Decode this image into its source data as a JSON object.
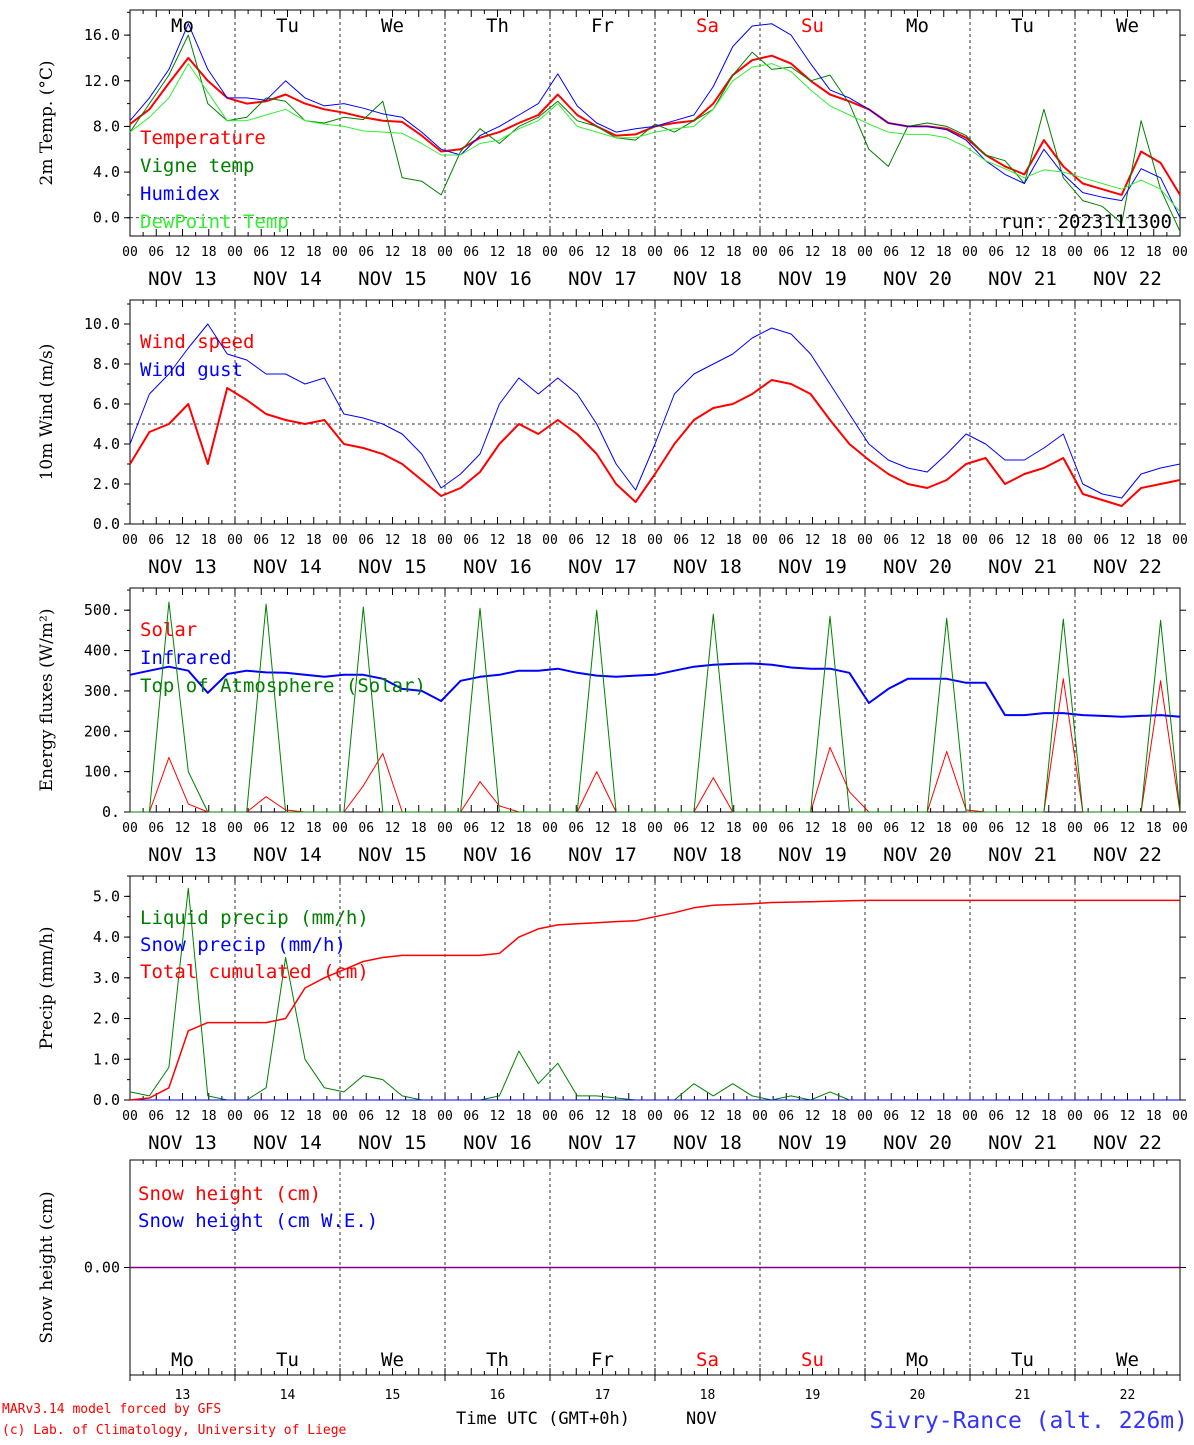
{
  "days": [
    {
      "abbr": "Mo",
      "label": "NOV 13",
      "num": "13",
      "weekend": false
    },
    {
      "abbr": "Tu",
      "label": "NOV 14",
      "num": "14",
      "weekend": false
    },
    {
      "abbr": "We",
      "label": "NOV 15",
      "num": "15",
      "weekend": false
    },
    {
      "abbr": "Th",
      "label": "NOV 16",
      "num": "16",
      "weekend": false
    },
    {
      "abbr": "Fr",
      "label": "NOV 17",
      "num": "17",
      "weekend": false
    },
    {
      "abbr": "Sa",
      "label": "NOV 18",
      "num": "18",
      "weekend": true
    },
    {
      "abbr": "Su",
      "label": "NOV 19",
      "num": "19",
      "weekend": true
    },
    {
      "abbr": "Mo",
      "label": "NOV 20",
      "num": "20",
      "weekend": false
    },
    {
      "abbr": "Tu",
      "label": "NOV 21",
      "num": "21",
      "weekend": false
    },
    {
      "abbr": "We",
      "label": "NOV 22",
      "num": "22",
      "weekend": false
    }
  ],
  "hour_ticks": [
    "00",
    "06",
    "12",
    "18"
  ],
  "run_label": "run: 2023111300",
  "footer": {
    "credit1": "MARv3.14 model forced by GFS",
    "credit2": "(c) Lab. of Climatology, University of Liege",
    "xaxis": "Time UTC (GMT+0h)",
    "month": "NOV",
    "station": "Sivry-Rance (alt. 226m)"
  },
  "colors": {
    "red": "#ff0000",
    "green": "#008000",
    "blue": "#0000ff",
    "light_green": "#33ee33",
    "purple": "#800080",
    "station": "#3333ff"
  },
  "chart_data": [
    {
      "id": "temp",
      "type": "line",
      "ylabel": "2m Temp. (°C)",
      "ylim": [
        -1.6,
        18.2
      ],
      "yticks": [
        {
          "v": 0,
          "l": "0.0"
        },
        {
          "v": 4,
          "l": "4.0"
        },
        {
          "v": 8,
          "l": "8.0"
        },
        {
          "v": 12,
          "l": "12.0"
        },
        {
          "v": 16,
          "l": "16.0"
        }
      ],
      "dashed_y": 0,
      "x_hours_step": 6,
      "series": [
        {
          "name": "Temperature",
          "color": "#ff0000",
          "width": 2,
          "values": [
            8.2,
            9.5,
            11.8,
            14.0,
            12.0,
            10.5,
            10.0,
            10.2,
            10.8,
            10.0,
            9.5,
            9.2,
            8.8,
            8.5,
            8.4,
            7.2,
            5.8,
            6.0,
            7.0,
            7.5,
            8.3,
            9.0,
            10.8,
            9.0,
            8.0,
            7.2,
            7.3,
            8.0,
            8.3,
            8.5,
            10.0,
            12.5,
            13.8,
            14.2,
            13.5,
            12.0,
            10.8,
            10.2,
            9.5,
            8.3,
            8.0,
            8.0,
            7.8,
            7.0,
            5.5,
            4.5,
            3.8,
            6.8,
            4.5,
            3.0,
            2.5,
            2.0,
            5.8,
            4.8,
            2.0
          ]
        },
        {
          "name": "Vigne temp",
          "color": "#008000",
          "width": 1,
          "values": [
            7.5,
            10.0,
            12.5,
            16.0,
            10.0,
            8.5,
            8.8,
            10.5,
            10.2,
            8.5,
            8.3,
            8.8,
            8.6,
            10.2,
            3.5,
            3.2,
            2.0,
            5.8,
            7.8,
            6.5,
            8.0,
            8.8,
            10.2,
            8.5,
            8.0,
            7.0,
            6.8,
            8.2,
            7.5,
            8.5,
            9.5,
            12.5,
            14.5,
            13.0,
            13.2,
            12.0,
            12.5,
            10.0,
            6.0,
            4.5,
            8.0,
            8.3,
            8.0,
            7.2,
            5.5,
            5.0,
            3.0,
            9.5,
            3.5,
            1.5,
            1.0,
            -0.5,
            8.5,
            2.5,
            -1.2
          ]
        },
        {
          "name": "Humidex",
          "color": "#0000ff",
          "width": 1,
          "values": [
            8.5,
            10.5,
            13.0,
            17.0,
            13.0,
            10.5,
            10.5,
            10.3,
            12.0,
            10.5,
            9.8,
            10.0,
            9.6,
            9.1,
            8.8,
            7.5,
            6.0,
            5.5,
            7.2,
            8.0,
            9.0,
            10.0,
            12.6,
            9.8,
            8.3,
            7.5,
            7.8,
            8.0,
            8.5,
            9.0,
            11.5,
            15.0,
            16.8,
            17.0,
            16.0,
            13.5,
            11.2,
            10.5,
            9.5,
            8.3,
            8.0,
            8.0,
            7.7,
            6.8,
            5.0,
            3.8,
            3.0,
            6.0,
            3.8,
            2.2,
            1.8,
            1.5,
            4.3,
            3.5,
            0.0
          ]
        },
        {
          "name": "DewPoint Temp",
          "color": "#33ee33",
          "width": 1,
          "values": [
            7.5,
            8.8,
            10.5,
            13.5,
            11.0,
            8.5,
            8.5,
            9.0,
            9.5,
            8.5,
            8.2,
            8.0,
            7.6,
            7.5,
            7.4,
            6.5,
            5.5,
            5.5,
            6.5,
            6.8,
            7.8,
            8.5,
            10.0,
            8.0,
            7.5,
            7.0,
            7.0,
            7.5,
            7.8,
            8.0,
            9.5,
            12.0,
            13.2,
            13.5,
            12.8,
            11.2,
            9.8,
            9.0,
            8.2,
            7.5,
            7.3,
            7.3,
            7.0,
            6.2,
            5.0,
            4.3,
            3.5,
            4.2,
            4.0,
            3.5,
            3.0,
            2.5,
            3.3,
            2.5,
            0.5
          ]
        }
      ]
    },
    {
      "id": "wind",
      "type": "line",
      "ylabel": "10m Wind (m/s)",
      "ylim": [
        0,
        11.2
      ],
      "yticks": [
        {
          "v": 0,
          "l": "0.0"
        },
        {
          "v": 2,
          "l": "2.0"
        },
        {
          "v": 4,
          "l": "4.0"
        },
        {
          "v": 6,
          "l": "6.0"
        },
        {
          "v": 8,
          "l": "8.0"
        },
        {
          "v": 10,
          "l": "10.0"
        }
      ],
      "dashed_y": 5,
      "x_hours_step": 6,
      "series": [
        {
          "name": "Wind speed",
          "color": "#ff0000",
          "width": 2,
          "values": [
            3.0,
            4.6,
            5.0,
            6.0,
            3.0,
            6.8,
            6.2,
            5.5,
            5.2,
            5.0,
            5.2,
            4.0,
            3.8,
            3.5,
            3.0,
            2.2,
            1.4,
            1.8,
            2.6,
            4.0,
            5.0,
            4.5,
            5.2,
            4.5,
            3.5,
            2.0,
            1.1,
            2.5,
            4.0,
            5.2,
            5.8,
            6.0,
            6.5,
            7.2,
            7.0,
            6.5,
            5.2,
            4.0,
            3.2,
            2.5,
            2.0,
            1.8,
            2.2,
            3.0,
            3.3,
            2.0,
            2.5,
            2.8,
            3.3,
            1.5,
            1.2,
            0.9,
            1.8,
            2.0,
            2.2
          ]
        },
        {
          "name": "Wind gust",
          "color": "#0000ff",
          "width": 1,
          "values": [
            4.0,
            6.5,
            7.5,
            8.8,
            10.0,
            8.5,
            8.2,
            7.5,
            7.5,
            7.0,
            7.3,
            5.5,
            5.3,
            5.0,
            4.5,
            3.5,
            1.8,
            2.5,
            3.5,
            6.0,
            7.3,
            6.5,
            7.3,
            6.5,
            5.0,
            3.0,
            1.7,
            4.0,
            6.5,
            7.5,
            8.0,
            8.5,
            9.3,
            9.8,
            9.5,
            8.5,
            7.0,
            5.5,
            4.0,
            3.2,
            2.8,
            2.6,
            3.5,
            4.5,
            4.0,
            3.2,
            3.2,
            3.8,
            4.5,
            2.0,
            1.5,
            1.3,
            2.5,
            2.8,
            3.0
          ]
        }
      ]
    },
    {
      "id": "energy",
      "type": "line",
      "ylabel": "Energy fluxes (W/m²)",
      "ylim": [
        0,
        555
      ],
      "yticks": [
        {
          "v": 0,
          "l": "0."
        },
        {
          "v": 100,
          "l": "100."
        },
        {
          "v": 200,
          "l": "200."
        },
        {
          "v": 300,
          "l": "300."
        },
        {
          "v": 400,
          "l": "400."
        },
        {
          "v": 500,
          "l": "500."
        }
      ],
      "x_hours_step": 6,
      "series": [
        {
          "name": "Solar",
          "color": "#ff0000",
          "width": 1,
          "values": [
            0,
            0,
            135,
            20,
            0,
            0,
            0,
            38,
            5,
            0,
            0,
            0,
            65,
            145,
            0,
            0,
            0,
            0,
            75,
            15,
            0,
            0,
            0,
            0,
            100,
            0,
            0,
            0,
            0,
            0,
            85,
            0,
            0,
            0,
            0,
            0,
            160,
            50,
            0,
            0,
            0,
            0,
            150,
            5,
            0,
            0,
            0,
            0,
            330,
            0,
            0,
            0,
            0,
            325,
            0
          ]
        },
        {
          "name": "Infrared",
          "color": "#0000ff",
          "width": 2,
          "values": [
            340,
            350,
            360,
            350,
            295,
            342,
            350,
            346,
            345,
            340,
            335,
            340,
            340,
            330,
            305,
            300,
            275,
            325,
            335,
            340,
            350,
            350,
            355,
            345,
            338,
            335,
            338,
            340,
            350,
            360,
            365,
            367,
            368,
            365,
            358,
            355,
            355,
            345,
            270,
            305,
            330,
            330,
            330,
            320,
            320,
            240,
            240,
            245,
            245,
            240,
            238,
            236,
            238,
            240,
            236
          ]
        },
        {
          "name": "Top of Atmosphere (Solar)",
          "color": "#008000",
          "width": 1,
          "values": [
            0,
            0,
            520,
            100,
            0,
            0,
            0,
            515,
            0,
            0,
            0,
            0,
            508,
            0,
            0,
            0,
            0,
            0,
            505,
            0,
            0,
            0,
            0,
            0,
            500,
            0,
            0,
            0,
            0,
            0,
            490,
            0,
            0,
            0,
            0,
            0,
            485,
            0,
            0,
            0,
            0,
            0,
            480,
            0,
            0,
            0,
            0,
            0,
            478,
            0,
            0,
            0,
            0,
            475,
            0
          ]
        }
      ]
    },
    {
      "id": "precip",
      "type": "line",
      "ylabel": "Precip (mm/h)",
      "ylim": [
        0,
        5.5
      ],
      "yticks": [
        {
          "v": 0,
          "l": "0.0"
        },
        {
          "v": 1,
          "l": "1.0"
        },
        {
          "v": 2,
          "l": "2.0"
        },
        {
          "v": 3,
          "l": "3.0"
        },
        {
          "v": 4,
          "l": "4.0"
        },
        {
          "v": 5,
          "l": "5.0"
        }
      ],
      "x_hours_step": 6,
      "series": [
        {
          "name": "Liquid precip (mm/h)",
          "color": "#008000",
          "width": 1,
          "values": [
            0.2,
            0.1,
            0.8,
            5.2,
            0.1,
            0,
            0,
            0.3,
            3.5,
            1.0,
            0.3,
            0.2,
            0.6,
            0.5,
            0.1,
            0,
            0,
            0,
            0,
            0.1,
            1.2,
            0.4,
            0.9,
            0.1,
            0.1,
            0.05,
            0,
            0,
            0,
            0.4,
            0.1,
            0.4,
            0.1,
            0,
            0.1,
            0,
            0.2,
            0,
            0,
            0,
            0,
            0,
            0,
            0,
            0,
            0,
            0,
            0,
            0,
            0,
            0,
            0,
            0,
            0,
            0
          ]
        },
        {
          "name": "Snow precip (mm/h)",
          "color": "#0000ff",
          "width": 1,
          "values": [
            0,
            0,
            0,
            0,
            0,
            0,
            0,
            0,
            0,
            0,
            0,
            0,
            0,
            0,
            0,
            0,
            0,
            0,
            0,
            0,
            0,
            0,
            0,
            0,
            0,
            0,
            0,
            0,
            0,
            0,
            0,
            0,
            0,
            0,
            0,
            0,
            0,
            0,
            0,
            0,
            0,
            0,
            0,
            0,
            0,
            0,
            0,
            0,
            0,
            0,
            0,
            0,
            0,
            0,
            0
          ]
        },
        {
          "name": "Total cumulated (cm)",
          "color": "#ff0000",
          "width": 1.5,
          "values": [
            0,
            0.05,
            0.3,
            1.7,
            1.9,
            1.9,
            1.9,
            1.9,
            2.0,
            2.75,
            3.0,
            3.2,
            3.4,
            3.5,
            3.55,
            3.55,
            3.55,
            3.55,
            3.55,
            3.6,
            4.0,
            4.2,
            4.3,
            4.33,
            4.35,
            4.38,
            4.4,
            4.5,
            4.6,
            4.72,
            4.78,
            4.8,
            4.82,
            4.85,
            4.86,
            4.87,
            4.88,
            4.89,
            4.9,
            4.9,
            4.9,
            4.9,
            4.9,
            4.9,
            4.9,
            4.9,
            4.9,
            4.9,
            4.9,
            4.9,
            4.9,
            4.9,
            4.9,
            4.9,
            4.9
          ]
        }
      ]
    },
    {
      "id": "snow",
      "type": "line",
      "ylabel": "Snow height (cm)",
      "ylim": [
        -1,
        1
      ],
      "yticks": [
        {
          "v": 0,
          "l": "0.00"
        }
      ],
      "x_hours_step": 6,
      "series": [
        {
          "name": "Snow height (cm)",
          "color": "#ff0000",
          "width": 1,
          "values": [
            0,
            0
          ]
        },
        {
          "name": "Snow height (cm W.E.)",
          "color": "#0000ff",
          "width": 1,
          "values": [
            0,
            0
          ]
        }
      ]
    }
  ]
}
